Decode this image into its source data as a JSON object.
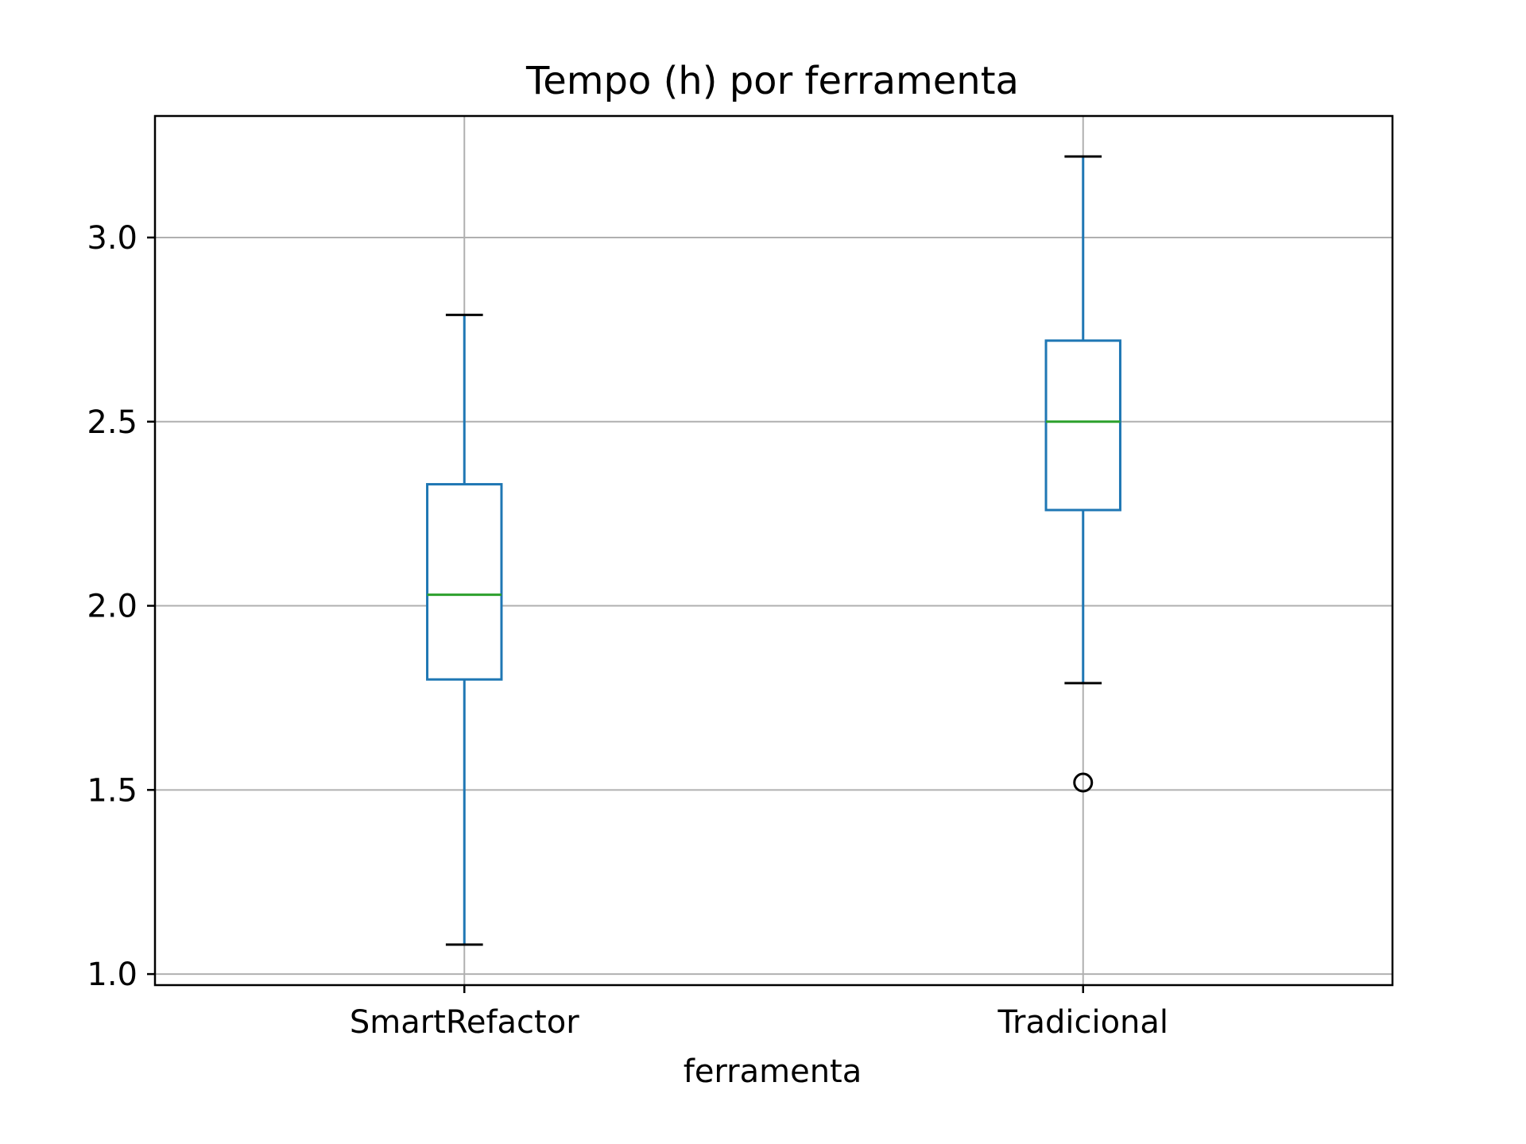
{
  "chart_data": {
    "type": "box",
    "title": "Tempo (h) por ferramenta",
    "xlabel": "ferramenta",
    "ylabel": "",
    "ylim": [
      0.97,
      3.33
    ],
    "yticks": [
      1.0,
      1.5,
      2.0,
      2.5,
      3.0
    ],
    "ytick_labels": [
      "1.0",
      "1.5",
      "2.0",
      "2.5",
      "3.0"
    ],
    "grid": true,
    "categories": [
      "SmartRefactor",
      "Tradicional"
    ],
    "boxes": [
      {
        "category": "SmartRefactor",
        "whisker_low": 1.08,
        "q1": 1.8,
        "median": 2.03,
        "q3": 2.33,
        "whisker_high": 2.79,
        "outliers": []
      },
      {
        "category": "Tradicional",
        "whisker_low": 1.79,
        "q1": 2.26,
        "median": 2.5,
        "q3": 2.72,
        "whisker_high": 3.22,
        "outliers": [
          1.52
        ]
      }
    ],
    "colors": {
      "box": "#1f77b4",
      "median": "#2ca02c",
      "caps": "#000000",
      "grid": "#b0b0b0",
      "outlier": "#000000"
    }
  }
}
